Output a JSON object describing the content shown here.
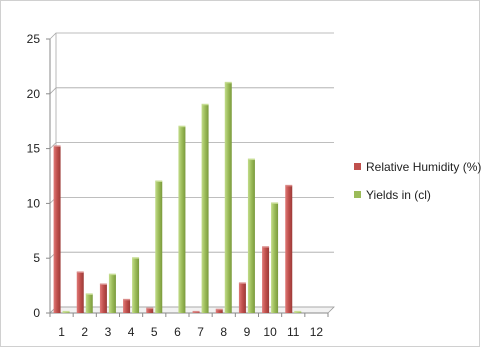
{
  "chart_data": {
    "type": "bar",
    "categories": [
      "1",
      "2",
      "3",
      "4",
      "5",
      "6",
      "7",
      "8",
      "9",
      "10",
      "11",
      "12"
    ],
    "series": [
      {
        "name": "Relative Humidity (%)",
        "color": "#c0504d",
        "values": [
          15.2,
          3.7,
          2.6,
          1.2,
          0.4,
          0.0,
          0.1,
          0.3,
          2.7,
          6.0,
          11.6,
          0
        ]
      },
      {
        "name": "Yields in (cl)",
        "color": "#9bbb59",
        "values": [
          0.1,
          1.7,
          3.5,
          5.0,
          12.0,
          17.0,
          19.0,
          21.0,
          14.0,
          10.0,
          0.1,
          0
        ]
      }
    ],
    "yticks": [
      "0",
      "5",
      "10",
      "15",
      "20",
      "25"
    ],
    "ylim": [
      0,
      25
    ],
    "grid": true,
    "legend_position": "right",
    "title": "",
    "xlabel": "",
    "ylabel": ""
  }
}
